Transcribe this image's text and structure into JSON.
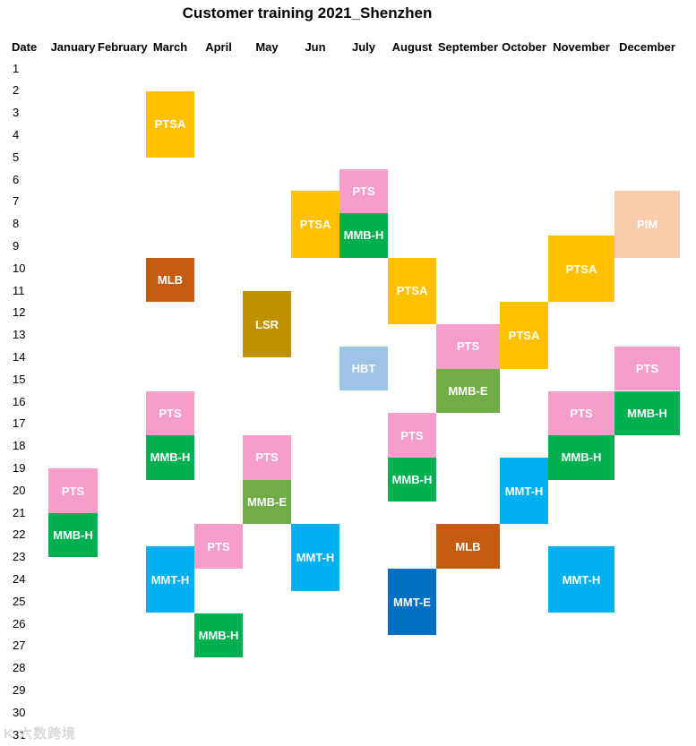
{
  "chart_data": {
    "type": "table",
    "title": "Customer training 2021_Shenzhen",
    "row_header": "Date",
    "columns": [
      "January",
      "February",
      "March",
      "April",
      "May",
      "Jun",
      "July",
      "August",
      "September",
      "October",
      "November",
      "December"
    ],
    "dates": [
      1,
      2,
      3,
      4,
      5,
      6,
      7,
      8,
      9,
      10,
      11,
      12,
      13,
      14,
      15,
      16,
      17,
      18,
      19,
      20,
      21,
      22,
      23,
      24,
      25,
      26,
      27,
      28,
      29,
      30,
      31
    ],
    "colors": {
      "PTSA": "#FFC000",
      "PTS": "#F79DCB",
      "MMB-H": "#00B050",
      "MMB-E": "#70AD47",
      "MLB": "#C55A11",
      "LSR": "#BF9000",
      "HBT": "#9DC3E6",
      "MMT-H": "#00B0F0",
      "MMT-E": "#0070C0",
      "PIM": "#F8CBAD"
    },
    "events": [
      {
        "label": "PTS",
        "month": "January",
        "start": 19.5,
        "end": 21.5
      },
      {
        "label": "MMB-H",
        "month": "January",
        "start": 21.5,
        "end": 23.5
      },
      {
        "label": "PTSA",
        "month": "March",
        "start": 2.5,
        "end": 5.5
      },
      {
        "label": "MLB",
        "month": "March",
        "start": 10,
        "end": 12
      },
      {
        "label": "PTS",
        "month": "March",
        "start": 16,
        "end": 18
      },
      {
        "label": "MMB-H",
        "month": "March",
        "start": 18,
        "end": 20
      },
      {
        "label": "MMT-H",
        "month": "March",
        "start": 23,
        "end": 26
      },
      {
        "label": "PTS",
        "month": "April",
        "start": 22,
        "end": 24
      },
      {
        "label": "MMB-H",
        "month": "April",
        "start": 26,
        "end": 28
      },
      {
        "label": "LSR",
        "month": "May",
        "start": 11.5,
        "end": 14.5
      },
      {
        "label": "PTS",
        "month": "May",
        "start": 18,
        "end": 20
      },
      {
        "label": "MMB-E",
        "month": "May",
        "start": 20,
        "end": 22
      },
      {
        "label": "PTSA",
        "month": "Jun",
        "start": 7,
        "end": 10
      },
      {
        "label": "MMT-H",
        "month": "Jun",
        "start": 22,
        "end": 25
      },
      {
        "label": "PTS",
        "month": "July",
        "start": 6,
        "end": 8
      },
      {
        "label": "MMB-H",
        "month": "July",
        "start": 8,
        "end": 10
      },
      {
        "label": "HBT",
        "month": "July",
        "start": 14,
        "end": 16
      },
      {
        "label": "PTSA",
        "month": "August",
        "start": 10,
        "end": 13
      },
      {
        "label": "PTS",
        "month": "August",
        "start": 17,
        "end": 19
      },
      {
        "label": "MMB-H",
        "month": "August",
        "start": 19,
        "end": 21
      },
      {
        "label": "MMT-E",
        "month": "August",
        "start": 24,
        "end": 27
      },
      {
        "label": "PTS",
        "month": "September",
        "start": 13,
        "end": 15
      },
      {
        "label": "MMB-E",
        "month": "September",
        "start": 15,
        "end": 17
      },
      {
        "label": "MLB",
        "month": "September",
        "start": 22,
        "end": 24
      },
      {
        "label": "PTSA",
        "month": "October",
        "start": 12,
        "end": 15
      },
      {
        "label": "MMT-H",
        "month": "October",
        "start": 19,
        "end": 22
      },
      {
        "label": "PTSA",
        "month": "November",
        "start": 9,
        "end": 12
      },
      {
        "label": "PTS",
        "month": "November",
        "start": 16,
        "end": 18
      },
      {
        "label": "MMB-H",
        "month": "November",
        "start": 18,
        "end": 20
      },
      {
        "label": "MMT-H",
        "month": "November",
        "start": 23,
        "end": 26
      },
      {
        "label": "PIM",
        "month": "December",
        "start": 7,
        "end": 10
      },
      {
        "label": "PTS",
        "month": "December",
        "start": 14,
        "end": 16
      },
      {
        "label": "MMB-H",
        "month": "December",
        "start": 16,
        "end": 18
      }
    ]
  },
  "watermark": "K 六数跨境"
}
